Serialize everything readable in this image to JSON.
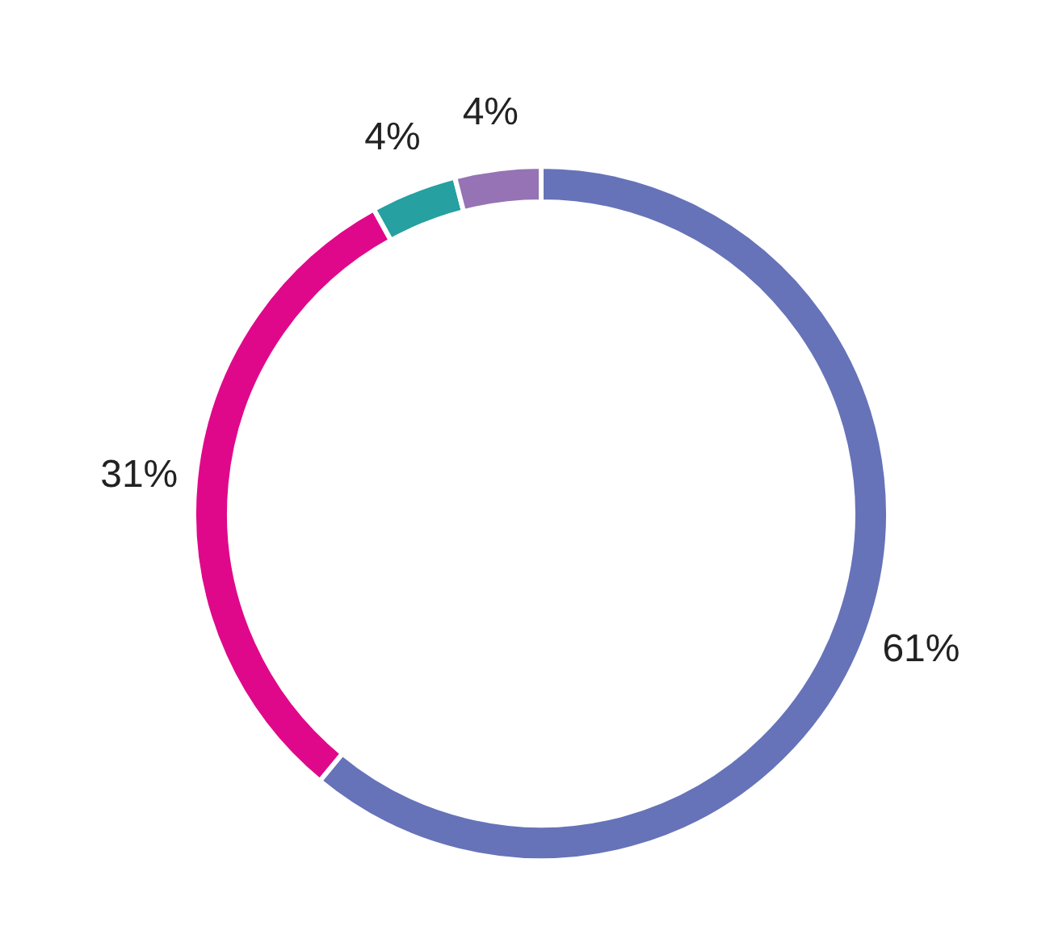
{
  "chart_data": {
    "type": "donut",
    "categories": [
      null,
      null,
      null,
      null
    ],
    "values": [
      61,
      31,
      4,
      4
    ],
    "colors": [
      "#6673b9",
      "#e0088a",
      "#26a0a0",
      "#9673b4"
    ],
    "value_labels": [
      "61%",
      "31%",
      "4%",
      "4%"
    ]
  }
}
